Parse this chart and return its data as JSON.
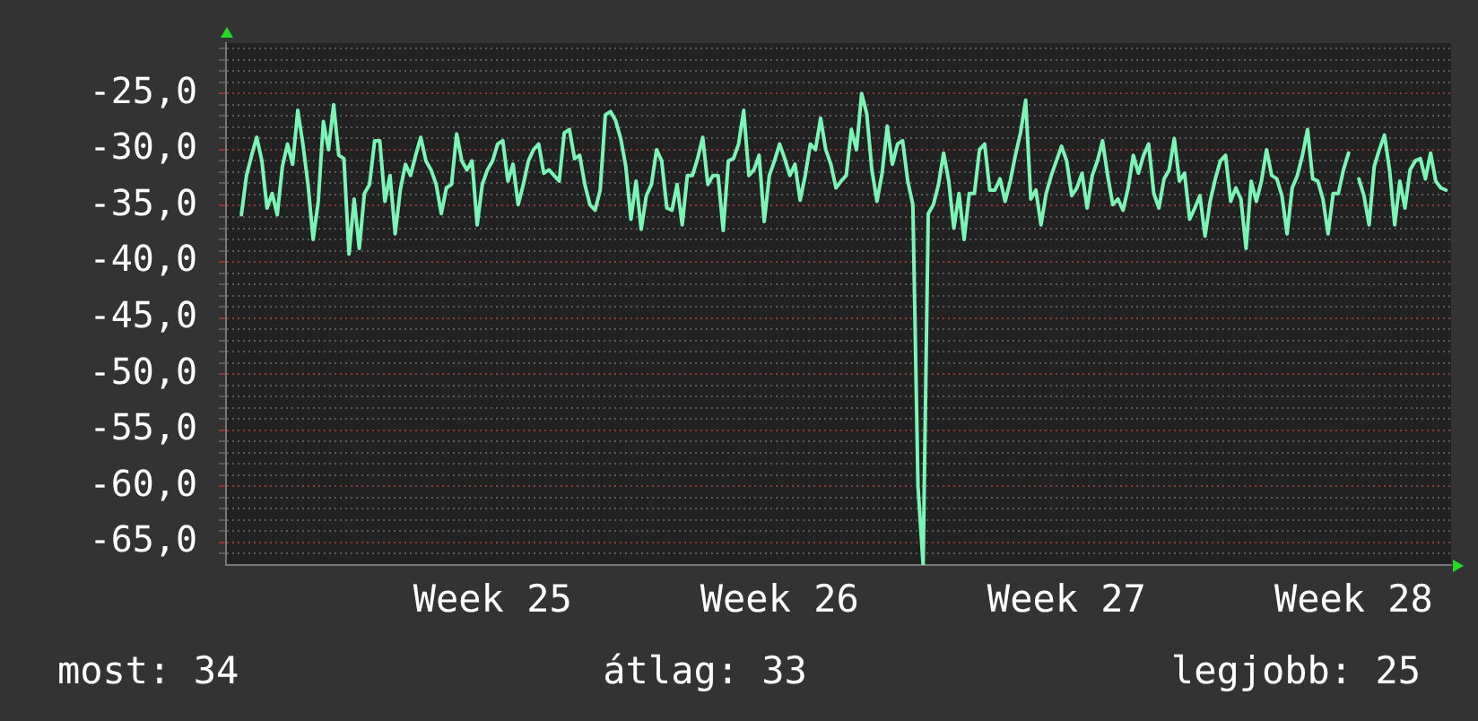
{
  "chart_data": {
    "type": "line",
    "marker": "none",
    "grid": "y",
    "annotations": [
      "most: 34",
      "átlag: 33",
      "legjobb: 25"
    ],
    "ylim": [
      -67,
      -20.5
    ],
    "yticks": [
      {
        "value": -66,
        "label": null
      },
      {
        "value": -65,
        "label": "-65,0"
      },
      {
        "value": -64,
        "label": null
      },
      {
        "value": -63,
        "label": null
      },
      {
        "value": -62,
        "label": null
      },
      {
        "value": -61,
        "label": null
      },
      {
        "value": -60,
        "label": "-60,0"
      },
      {
        "value": -59,
        "label": null
      },
      {
        "value": -58,
        "label": null
      },
      {
        "value": -57,
        "label": null
      },
      {
        "value": -56,
        "label": null
      },
      {
        "value": -55,
        "label": "-55,0"
      },
      {
        "value": -54,
        "label": null
      },
      {
        "value": -53,
        "label": null
      },
      {
        "value": -52,
        "label": null
      },
      {
        "value": -51,
        "label": null
      },
      {
        "value": -50,
        "label": "-50,0"
      },
      {
        "value": -49,
        "label": null
      },
      {
        "value": -48,
        "label": null
      },
      {
        "value": -47,
        "label": null
      },
      {
        "value": -46,
        "label": null
      },
      {
        "value": -45,
        "label": "-45,0"
      },
      {
        "value": -44,
        "label": null
      },
      {
        "value": -43,
        "label": null
      },
      {
        "value": -42,
        "label": null
      },
      {
        "value": -41,
        "label": null
      },
      {
        "value": -40,
        "label": "-40,0"
      },
      {
        "value": -39,
        "label": null
      },
      {
        "value": -38,
        "label": null
      },
      {
        "value": -37,
        "label": null
      },
      {
        "value": -36,
        "label": null
      },
      {
        "value": -35,
        "label": "-35,0"
      },
      {
        "value": -34,
        "label": null
      },
      {
        "value": -33,
        "label": null
      },
      {
        "value": -32,
        "label": null
      },
      {
        "value": -31,
        "label": null
      },
      {
        "value": -30,
        "label": "-30,0"
      },
      {
        "value": -29,
        "label": null
      },
      {
        "value": -28,
        "label": null
      },
      {
        "value": -27,
        "label": null
      },
      {
        "value": -26,
        "label": null
      },
      {
        "value": -25,
        "label": "-25,0"
      },
      {
        "value": -24,
        "label": null
      },
      {
        "value": -23,
        "label": null
      },
      {
        "value": -22,
        "label": null
      },
      {
        "value": -21,
        "label": null
      }
    ],
    "categories": [
      null,
      null,
      null,
      null,
      null,
      null,
      null,
      null,
      null,
      null,
      null,
      null,
      null,
      null,
      null,
      null,
      null,
      null,
      null,
      null,
      null,
      null,
      null,
      null,
      null,
      null,
      null,
      null,
      null,
      null,
      null,
      null,
      null,
      null,
      null,
      null,
      null,
      null,
      null,
      null,
      null,
      null,
      null,
      null,
      null,
      null,
      null,
      null,
      null,
      null,
      null,
      null,
      "Week 25",
      null,
      null,
      null,
      null,
      null,
      null,
      null,
      null,
      null,
      null,
      null,
      null,
      null,
      null,
      null,
      null,
      null,
      null,
      null,
      null,
      null,
      null,
      null,
      null,
      null,
      null,
      null,
      null,
      null,
      null,
      null,
      null,
      null,
      null,
      null,
      null,
      null,
      null,
      null,
      null,
      null,
      null,
      null,
      null,
      null,
      null,
      null,
      null,
      null,
      null,
      null,
      null,
      null,
      null,
      null,
      "Week 26",
      null,
      null,
      null,
      null,
      null,
      null,
      null,
      null,
      null,
      null,
      null,
      null,
      null,
      null,
      null,
      null,
      null,
      null,
      null,
      null,
      null,
      null,
      null,
      null,
      null,
      null,
      null,
      null,
      null,
      null,
      null,
      null,
      null,
      null,
      null,
      null,
      null,
      null,
      null,
      null,
      null,
      null,
      null,
      null,
      null,
      null,
      null,
      null,
      null,
      null,
      null,
      null,
      null,
      null,
      null,
      "Week 27",
      null,
      null,
      null,
      null,
      null,
      null,
      null,
      null,
      null,
      null,
      null,
      null,
      null,
      null,
      null,
      null,
      null,
      null,
      null,
      null,
      null,
      null,
      null,
      null,
      null,
      null,
      null,
      null,
      null,
      null,
      null,
      null,
      null,
      null,
      null,
      null,
      null,
      null,
      null,
      null,
      null,
      null,
      null,
      null,
      null,
      null,
      null,
      null,
      null,
      null,
      null,
      null,
      null,
      null,
      null,
      "Week 28",
      null,
      null,
      null,
      null,
      null,
      null,
      null,
      null,
      null,
      null,
      null,
      null,
      null,
      null,
      null,
      null,
      null,
      null,
      null
    ],
    "series": [
      {
        "color": "#7af5b5",
        "values": [
          null,
          null,
          null,
          -35.8,
          -32.3,
          -30.5,
          -28.9,
          -31.0,
          -35.2,
          -33.9,
          -35.8,
          -31.5,
          -29.5,
          -31.3,
          -26.5,
          -29.5,
          -33.1,
          -38.0,
          -34.6,
          -27.5,
          -30.0,
          -26.0,
          -30.5,
          -30.8,
          -39.3,
          -34.4,
          -38.8,
          -33.9,
          -33.1,
          -29.2,
          -29.2,
          -34.6,
          -32.3,
          -37.5,
          -33.6,
          -31.3,
          -32.3,
          -30.5,
          -28.9,
          -31.0,
          -31.8,
          -33.1,
          -35.7,
          -33.4,
          -33.1,
          -28.6,
          -31.0,
          -31.8,
          -31.0,
          -36.7,
          -33.1,
          -31.8,
          -31.0,
          -29.5,
          -29.2,
          -32.8,
          -31.3,
          -34.9,
          -33.1,
          -31.0,
          -30.0,
          -29.5,
          -32.1,
          -31.8,
          -32.3,
          -32.8,
          -28.5,
          -28.2,
          -30.8,
          -30.5,
          -33.1,
          -34.9,
          -35.4,
          -33.6,
          -26.9,
          -26.6,
          -27.4,
          -29.0,
          -31.5,
          -36.2,
          -32.8,
          -37.1,
          -34.1,
          -33.1,
          -30.0,
          -31.0,
          -35.2,
          -35.4,
          -33.1,
          -36.7,
          -32.3,
          -32.3,
          -30.8,
          -28.9,
          -33.1,
          -32.3,
          -32.3,
          -37.2,
          -31.0,
          -30.8,
          -29.5,
          -26.5,
          -32.3,
          -31.8,
          -30.5,
          -36.4,
          -32.3,
          -31.0,
          -29.5,
          -30.8,
          -32.3,
          -31.3,
          -34.5,
          -32.3,
          -29.5,
          -30.0,
          -27.2,
          -30.0,
          -31.3,
          -33.4,
          -32.8,
          -32.3,
          -28.2,
          -30.0,
          -25.0,
          -26.8,
          -31.8,
          -34.6,
          -32.1,
          -27.9,
          -31.3,
          -29.5,
          -29.2,
          -32.8,
          -34.9,
          -60.0,
          -67.0,
          -35.7,
          -34.9,
          -33.1,
          -30.3,
          -32.8,
          -37.0,
          -33.9,
          -38.0,
          -33.9,
          -33.9,
          -30.0,
          -29.5,
          -33.6,
          -33.6,
          -32.6,
          -34.6,
          -32.8,
          -30.5,
          -28.5,
          -25.6,
          -34.4,
          -33.6,
          -36.7,
          -33.9,
          -32.3,
          -31.0,
          -29.7,
          -31.0,
          -34.1,
          -33.4,
          -32.1,
          -35.2,
          -32.3,
          -31.0,
          -29.2,
          -32.3,
          -34.9,
          -34.4,
          -35.4,
          -33.4,
          -30.5,
          -32.1,
          -30.5,
          -29.5,
          -33.9,
          -35.2,
          -32.6,
          -31.8,
          -29.0,
          -32.8,
          -32.1,
          -36.2,
          -35.2,
          -34.1,
          -37.7,
          -34.6,
          -32.6,
          -31.0,
          -30.5,
          -34.6,
          -33.4,
          -34.4,
          -38.8,
          -32.8,
          -34.6,
          -32.8,
          -30.0,
          -32.3,
          -32.6,
          -34.1,
          -37.5,
          -33.4,
          -32.3,
          -30.5,
          -28.2,
          -32.6,
          -32.8,
          -34.4,
          -37.5,
          -33.9,
          -33.9,
          -31.8,
          -30.3,
          null,
          -32.6,
          -34.1,
          -36.7,
          -31.5,
          -30.0,
          -28.7,
          -31.8,
          -36.7,
          -32.8,
          -35.2,
          -31.8,
          -31.0,
          -30.8,
          -32.6,
          -30.3,
          -32.8,
          -33.4,
          -33.6,
          null
        ]
      }
    ]
  }
}
